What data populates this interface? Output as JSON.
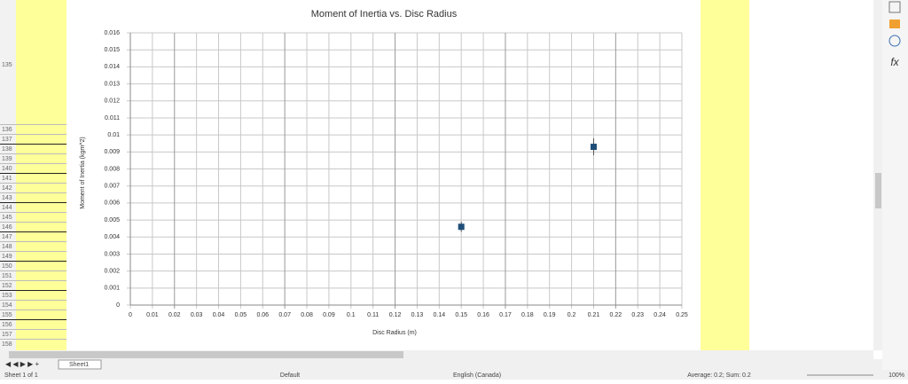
{
  "chart_data": {
    "type": "scatter",
    "title": "Moment of Inertia vs. Disc Radius",
    "x_label": "Disc Radius (m)",
    "y_label": "Moment of Inertia (kgm^2)",
    "x": [
      0.15,
      0.21
    ],
    "values": [
      0.0046,
      0.0093
    ],
    "errors": [
      0.0003,
      0.0005
    ],
    "color": "#1f4e79",
    "xlim": [
      0,
      0.25
    ],
    "xticks": [
      0,
      0.01,
      0.02,
      0.03,
      0.04,
      0.05,
      0.06,
      0.07,
      0.08,
      0.09,
      0.1,
      0.11,
      0.12,
      0.13,
      0.14,
      0.15,
      0.16,
      0.17,
      0.18,
      0.19,
      0.2,
      0.21,
      0.22,
      0.23,
      0.24,
      0.25
    ],
    "ylim": [
      0,
      0.016
    ],
    "yticks": [
      0,
      0.001,
      0.002,
      0.003,
      0.004,
      0.005,
      0.006,
      0.007,
      0.008,
      0.009,
      0.01,
      0.011,
      0.012,
      0.013,
      0.014,
      0.015,
      0.016
    ],
    "grid": true
  },
  "rows": [
    "135",
    "136",
    "137",
    "138",
    "139",
    "140",
    "141",
    "142",
    "143",
    "144",
    "145",
    "146",
    "147",
    "148",
    "149",
    "150",
    "151",
    "152",
    "153",
    "154",
    "155",
    "156",
    "157",
    "158"
  ],
  "sidebar": {
    "function": "fx"
  },
  "sheet_tab": "Sheet1",
  "status": {
    "sheet": "Sheet 1 of 1",
    "style": "Default",
    "language": "English (Canada)",
    "summary": "Average: 0.2; Sum: 0.2",
    "zoom": "100%"
  }
}
